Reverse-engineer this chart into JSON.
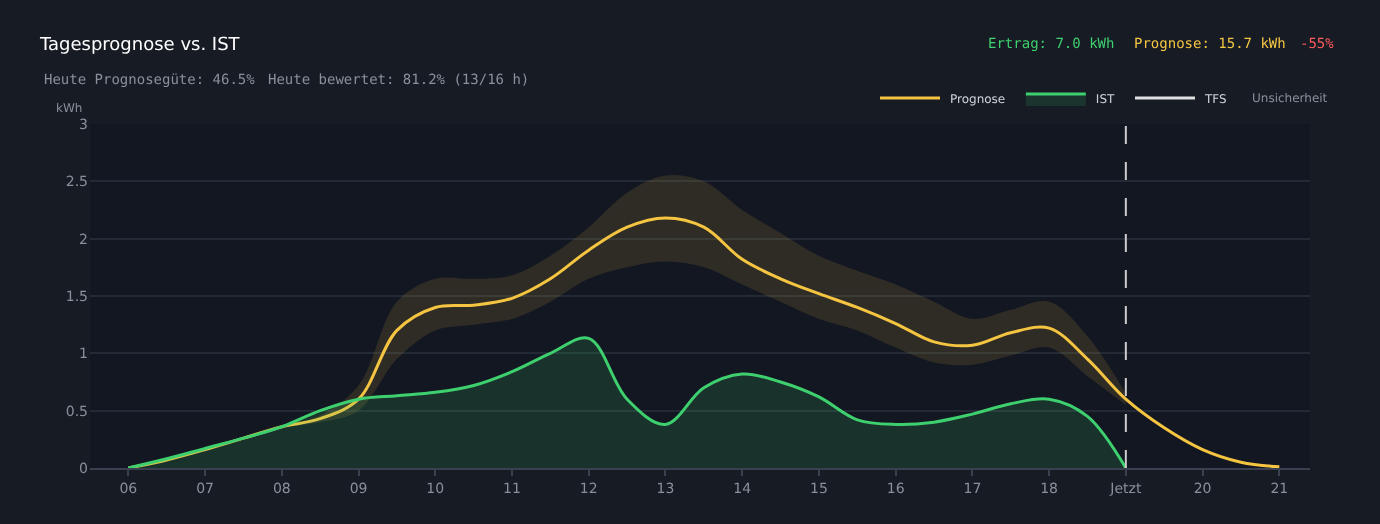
{
  "chart_data": {
    "type": "line",
    "title": "Tagesprognose vs. IST",
    "ylabel": "kWh",
    "annotations": [
      "Ertrag: 7.0 kWh",
      "Prognose: 15.7 kWh",
      "-55%",
      "Heute Prognosegüte: 46.5%",
      "Heute bewertet: 81.2% (13/16 h)",
      "Unsicherheit"
    ],
    "series": [
      {
        "name": "Prognose",
        "type": "line",
        "color": "#f5c542",
        "x": [
          6,
          6.5,
          7,
          7.5,
          8,
          8.5,
          9,
          9.5,
          10,
          10.5,
          11,
          11.5,
          12,
          12.5,
          13,
          13.5,
          14,
          14.5,
          15,
          15.5,
          16,
          16.5,
          17,
          17.5,
          18,
          18.5,
          19,
          19.5,
          20,
          20.5,
          21
        ],
        "values": [
          0,
          0.07,
          0.16,
          0.26,
          0.36,
          0.43,
          0.6,
          1.2,
          1.4,
          1.42,
          1.48,
          1.65,
          1.9,
          2.1,
          2.18,
          2.1,
          1.82,
          1.65,
          1.52,
          1.4,
          1.26,
          1.1,
          1.07,
          1.18,
          1.22,
          0.95,
          0.6,
          0.35,
          0.16,
          0.05,
          0.01
        ],
        "lower": [
          null,
          null,
          null,
          null,
          0.36,
          0.4,
          0.5,
          0.95,
          1.2,
          1.25,
          1.3,
          1.45,
          1.65,
          1.75,
          1.8,
          1.75,
          1.6,
          1.45,
          1.3,
          1.2,
          1.05,
          0.92,
          0.9,
          0.98,
          1.05,
          0.8,
          0.55,
          null,
          null,
          null,
          null
        ],
        "upper": [
          null,
          null,
          null,
          null,
          0.36,
          0.46,
          0.72,
          1.45,
          1.65,
          1.65,
          1.68,
          1.85,
          2.1,
          2.4,
          2.55,
          2.5,
          2.25,
          2.05,
          1.85,
          1.72,
          1.6,
          1.45,
          1.3,
          1.38,
          1.45,
          1.15,
          0.65,
          null,
          null,
          null,
          null
        ]
      },
      {
        "name": "IST",
        "type": "area",
        "color": "#3ecf6e",
        "x": [
          6,
          6.5,
          7,
          7.5,
          8,
          8.5,
          9,
          9.5,
          10,
          10.5,
          11,
          11.5,
          12,
          12.5,
          13,
          13.5,
          14,
          14.5,
          15,
          15.5,
          16,
          16.5,
          17,
          17.5,
          18,
          18.5,
          19
        ],
        "values": [
          0,
          0.08,
          0.17,
          0.26,
          0.36,
          0.5,
          0.6,
          0.63,
          0.66,
          0.72,
          0.84,
          1.0,
          1.13,
          0.6,
          0.38,
          0.7,
          0.82,
          0.75,
          0.62,
          0.42,
          0.38,
          0.4,
          0.47,
          0.56,
          0.6,
          0.45,
          0
        ]
      },
      {
        "name": "TFS",
        "type": "line",
        "color": "#e0e0e0"
      }
    ],
    "xlim": [
      5.5,
      21.4
    ],
    "xticks": [
      {
        "value": 6,
        "label": "06"
      },
      {
        "value": 7,
        "label": "07"
      },
      {
        "value": 8,
        "label": "08"
      },
      {
        "value": 9,
        "label": "09"
      },
      10,
      11,
      12,
      13,
      14,
      15,
      16,
      17,
      18,
      {
        "value": 19,
        "label": "Jetzt"
      },
      20,
      21
    ],
    "ylim": [
      0,
      3
    ],
    "yticks": [
      0,
      0.5,
      1,
      1.5,
      2,
      2.5,
      3
    ],
    "ref_lines": [
      {
        "axis": "x",
        "value": 19,
        "label": null,
        "color": "#cccccc",
        "line_style": "dashed"
      }
    ],
    "grid": "y",
    "legend": "top right"
  }
}
